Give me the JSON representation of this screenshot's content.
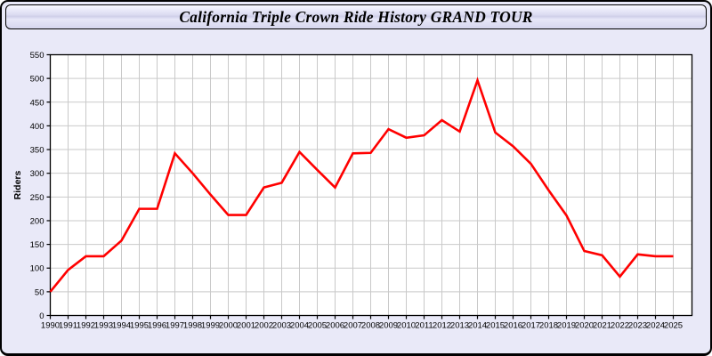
{
  "window": {
    "title": "California Triple Crown Ride History GRAND TOUR"
  },
  "colors": {
    "page_background": "#e9e9f8",
    "plot_background": "#ffffff",
    "grid": "#c9c9c9",
    "frame": "#000000",
    "series_line": "#ff0000",
    "text": "#000000"
  },
  "chart_data": {
    "type": "line",
    "title": "California Triple Crown Ride History GRAND TOUR",
    "xlabel": "",
    "ylabel": "Riders",
    "x": [
      "1990",
      "1991",
      "1992",
      "1993",
      "1994",
      "1995",
      "1996",
      "1997",
      "1998",
      "1999",
      "2000",
      "2001",
      "2002",
      "2003",
      "2004",
      "2005",
      "2006",
      "2007",
      "2008",
      "2009",
      "2010",
      "2011",
      "2012",
      "2013",
      "2014",
      "2015",
      "2016",
      "2017",
      "2018",
      "2019",
      "2020",
      "2021",
      "2022",
      "2023",
      "2024",
      "2025"
    ],
    "series": [
      {
        "name": "Riders",
        "color": "#ff0000",
        "values": [
          50,
          96,
          125,
          125,
          158,
          225,
          225,
          342,
          300,
          255,
          212,
          212,
          270,
          280,
          345,
          307,
          270,
          342,
          343,
          393,
          375,
          380,
          412,
          388,
          496,
          386,
          357,
          320,
          264,
          211,
          136,
          127,
          82,
          129,
          125,
          125
        ]
      }
    ],
    "ylim": [
      0,
      550
    ],
    "ytick_step": 50,
    "grid": true,
    "legend": "none"
  }
}
